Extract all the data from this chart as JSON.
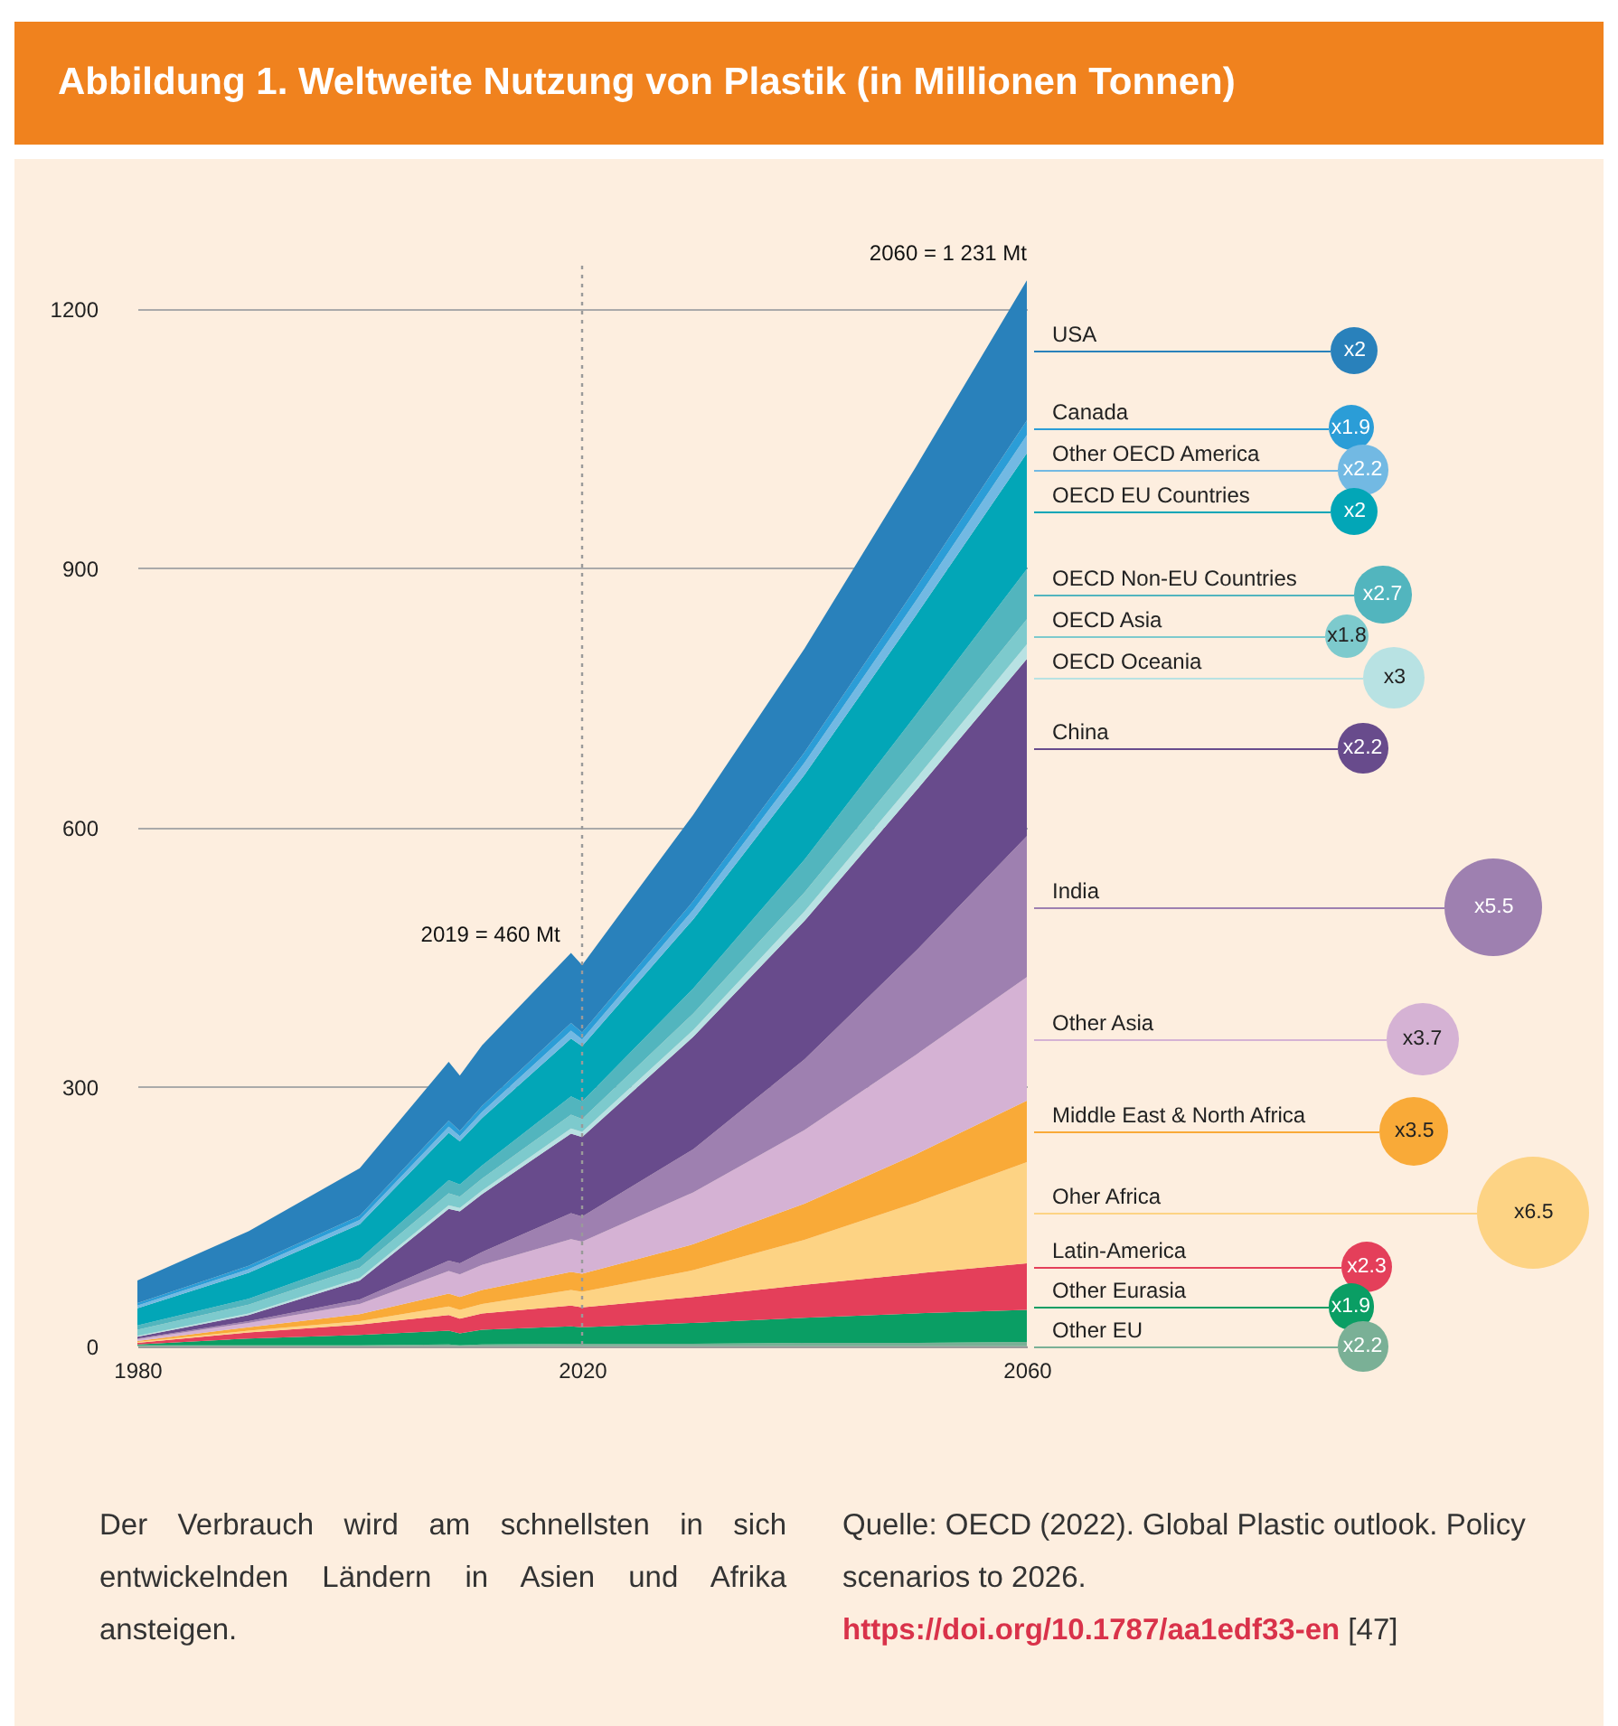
{
  "chart_data": {
    "type": "area",
    "title": "Abbildung 1. Weltweite Nutzung von Plastik (in Millionen Tonnen)",
    "stacked": true,
    "x": [
      1980,
      1990,
      2000,
      2008,
      2009,
      2011,
      2019,
      2020,
      2030,
      2040,
      2050,
      2060
    ],
    "xlim": [
      1980,
      2060
    ],
    "xticks": [
      1980,
      2020,
      2060
    ],
    "ylim": [
      0,
      1250
    ],
    "yticks": [
      0,
      300,
      600,
      900,
      1200
    ],
    "grid": "y",
    "legend": "right",
    "series": [
      {
        "name": "Other EU",
        "color": "#7ab096",
        "values": [
          1,
          1,
          1,
          2,
          1,
          2,
          3,
          3,
          3,
          4,
          4,
          5
        ]
      },
      {
        "name": "Other Eurasia",
        "color": "#0a9e64",
        "values": [
          1,
          8,
          12,
          16,
          14,
          17,
          20,
          19,
          24,
          29,
          34,
          37
        ]
      },
      {
        "name": "Latin-America",
        "color": "#e43f5a",
        "values": [
          2,
          7,
          12,
          18,
          17,
          19,
          24,
          23,
          30,
          38,
          46,
          54
        ]
      },
      {
        "name": "Oher Africa",
        "color": "#fdd384",
        "values": [
          1,
          2,
          4,
          10,
          10,
          11,
          18,
          18,
          31,
          52,
          82,
          117
        ]
      },
      {
        "name": "Middle East & North Africa",
        "color": "#f9aa38",
        "values": [
          1,
          4,
          8,
          15,
          15,
          16,
          21,
          21,
          30,
          42,
          56,
          71
        ]
      },
      {
        "name": "Other Asia",
        "color": "#d5b2d4",
        "values": [
          2,
          5,
          12,
          26,
          26,
          29,
          38,
          37,
          60,
          85,
          115,
          143
        ]
      },
      {
        "name": "India",
        "color": "#9e80b0",
        "values": [
          1,
          2,
          5,
          12,
          13,
          15,
          30,
          29,
          50,
          82,
          120,
          163
        ]
      },
      {
        "name": "China",
        "color": "#684b8c",
        "values": [
          2,
          7,
          22,
          60,
          60,
          67,
          92,
          92,
          130,
          160,
          185,
          205
        ]
      },
      {
        "name": "OECD Oceania",
        "color": "#b8e2e3",
        "values": [
          1,
          2,
          3,
          4,
          4,
          4,
          6,
          6,
          8,
          11,
          14,
          17
        ]
      },
      {
        "name": "OECD Asia",
        "color": "#7dcacd",
        "values": [
          7,
          10,
          12,
          14,
          13,
          14,
          16,
          15,
          19,
          22,
          26,
          29
        ]
      },
      {
        "name": "OECD Non-EU Countries",
        "color": "#52b5be",
        "values": [
          5,
          7,
          10,
          15,
          14,
          15,
          21,
          20,
          29,
          38,
          48,
          58
        ]
      },
      {
        "name": "OECD EU Countries",
        "color": "#02a6b7",
        "values": [
          20,
          30,
          40,
          55,
          50,
          55,
          67,
          64,
          80,
          98,
          115,
          134
        ]
      },
      {
        "name": "Other OECD America",
        "color": "#72b9e3",
        "values": [
          3,
          4,
          5,
          7,
          6,
          7,
          9,
          8,
          11,
          14,
          17,
          21
        ]
      },
      {
        "name": "Canada",
        "color": "#2b9dd7",
        "values": [
          3,
          4,
          5,
          7,
          6,
          7,
          9,
          8,
          10,
          12,
          15,
          17
        ]
      },
      {
        "name": "USA",
        "color": "#2981bb",
        "values": [
          26,
          40,
          55,
          68,
          64,
          70,
          81,
          78,
          100,
          120,
          140,
          162
        ]
      }
    ],
    "ref_lines": [
      {
        "axis": "x",
        "value": 2020,
        "line_style": "dotted",
        "color": "#9a9a9a"
      }
    ],
    "annotations": [
      {
        "text": "2060 = 1 231 Mt",
        "x": 2060,
        "y": 1231
      },
      {
        "text": "2019 = 460 Mt",
        "x": 2019,
        "y": 460
      },
      "Der Verbrauch wird am schnellsten in sich entwickelnden Ländern in Asien und Afrika ansteigen.",
      "Quelle: OECD (2022). Global Plastic outlook. Policy scenarios to 2026. https://doi.org/10.1787/aa1edf33-en [47]",
      "x2.2",
      "x1.9",
      "x2.3",
      "x6.5",
      "x3.5",
      "x3.7",
      "x5.5",
      "x2.2",
      "x3",
      "x1.8",
      "x2.7",
      "x2",
      "x2.2",
      "x1.9",
      "x2"
    ]
  }
}
